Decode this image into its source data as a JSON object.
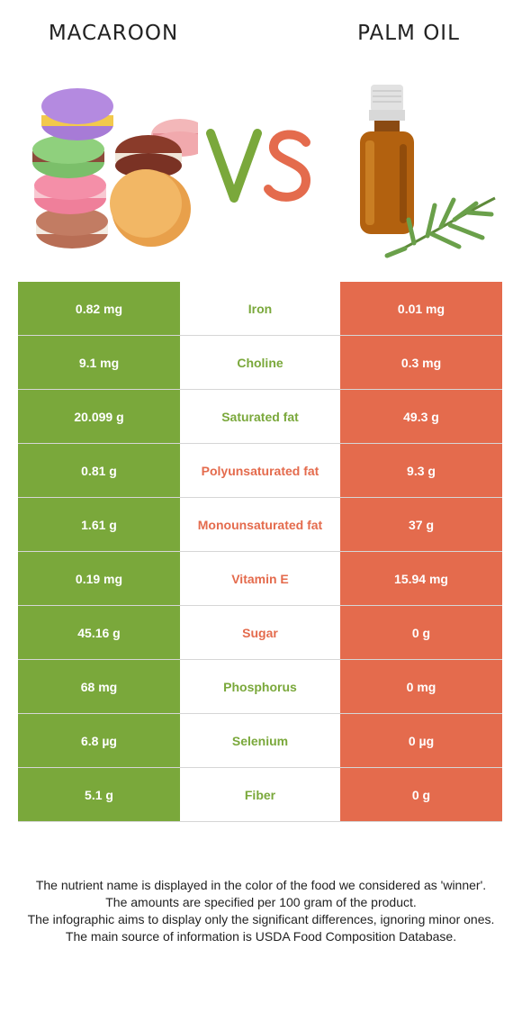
{
  "header": {
    "left_food": "MACAROON",
    "right_food": "PALM OIL",
    "vs_label": "VS"
  },
  "colors": {
    "left_accent": "#7aa83b",
    "right_accent": "#e46b4d",
    "neutral_winner": "#7aa83b"
  },
  "rows": [
    {
      "left": "0.82 mg",
      "nutrient": "Iron",
      "right": "0.01 mg",
      "winner": "left"
    },
    {
      "left": "9.1 mg",
      "nutrient": "Choline",
      "right": "0.3 mg",
      "winner": "left"
    },
    {
      "left": "20.099 g",
      "nutrient": "Saturated fat",
      "right": "49.3 g",
      "winner": "left"
    },
    {
      "left": "0.81 g",
      "nutrient": "Polyunsaturated fat",
      "right": "9.3 g",
      "winner": "right"
    },
    {
      "left": "1.61 g",
      "nutrient": "Monounsaturated fat",
      "right": "37 g",
      "winner": "right"
    },
    {
      "left": "0.19 mg",
      "nutrient": "Vitamin E",
      "right": "15.94 mg",
      "winner": "right"
    },
    {
      "left": "45.16 g",
      "nutrient": "Sugar",
      "right": "0 g",
      "winner": "right"
    },
    {
      "left": "68 mg",
      "nutrient": "Phosphorus",
      "right": "0 mg",
      "winner": "left"
    },
    {
      "left": "6.8 µg",
      "nutrient": "Selenium",
      "right": "0 µg",
      "winner": "left"
    },
    {
      "left": "5.1 g",
      "nutrient": "Fiber",
      "right": "0 g",
      "winner": "left"
    }
  ],
  "footer": {
    "line1": "The nutrient name is displayed in the color of the food we considered as 'winner'.",
    "line2": "The amounts are specified per 100 gram of the product.",
    "line3": "The infographic aims to display only the significant differences, ignoring minor ones.",
    "line4": "The main source of information is USDA Food Composition Database."
  }
}
